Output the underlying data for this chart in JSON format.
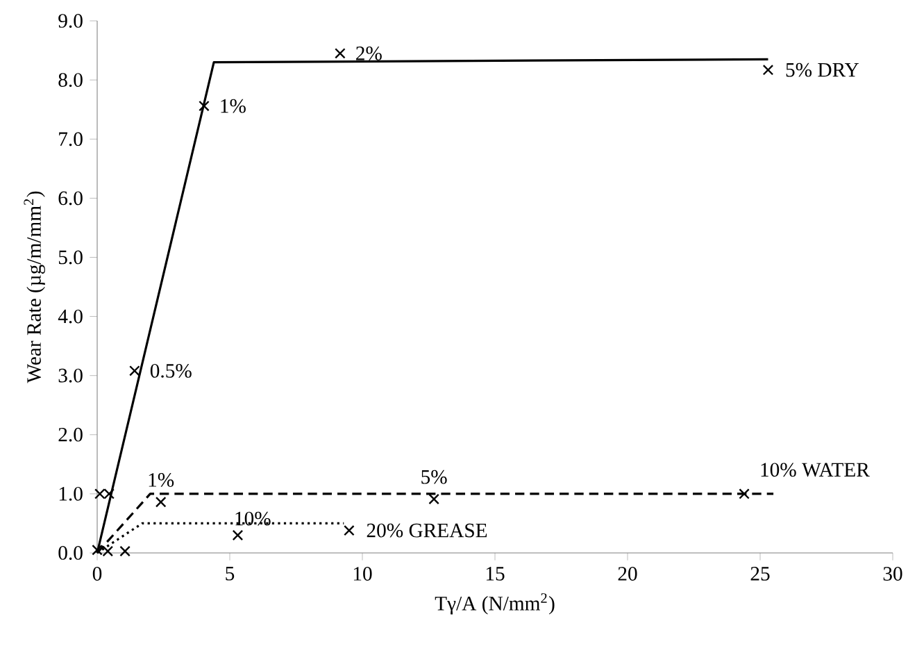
{
  "chart_data": {
    "type": "scatter",
    "xlabel": "Tγ/A (N/mm$^{2}$)",
    "ylabel": "Wear Rate (µg/m/mm$^{2}$)",
    "xlim": [
      0,
      30
    ],
    "xticks": [
      0,
      5,
      10,
      15,
      20,
      25,
      30
    ],
    "ylim": [
      0,
      9
    ],
    "yticks": [
      {
        "value": 0,
        "label": "0.0"
      },
      {
        "value": 1,
        "label": "1.0"
      },
      {
        "value": 2,
        "label": "2.0"
      },
      {
        "value": 3,
        "label": "3.0"
      },
      {
        "value": 4,
        "label": "4.0"
      },
      {
        "value": 5,
        "label": "5.0"
      },
      {
        "value": 6,
        "label": "6.0"
      },
      {
        "value": 7,
        "label": "7.0"
      },
      {
        "value": 8,
        "label": "8.0"
      },
      {
        "value": 9,
        "label": "9.0"
      }
    ],
    "grid": false,
    "legend": false,
    "series": [
      {
        "type": "line",
        "color": "#000000",
        "line_style": "solid",
        "marker": "none",
        "x": [
          0,
          4.4,
          25.3
        ],
        "values": [
          0,
          8.3,
          8.35
        ]
      },
      {
        "color": "#000000",
        "marker": "cross",
        "x": [
          0,
          0.1,
          0.45,
          1.41,
          4.03,
          9.16,
          25.3
        ],
        "values": [
          0.05,
          1.0,
          1.0,
          3.08,
          7.56,
          8.45,
          8.17
        ]
      },
      {
        "type": "line",
        "color": "#000000",
        "line_style": "dashed",
        "marker": "none",
        "x": [
          0,
          2.0,
          25.5
        ],
        "values": [
          0,
          1.0,
          1.0
        ]
      },
      {
        "color": "#000000",
        "marker": "cross",
        "x": [
          0.4,
          1.05,
          2.4,
          12.7,
          24.4
        ],
        "values": [
          0.03,
          0.03,
          0.86,
          0.91,
          1.0
        ]
      },
      {
        "type": "line",
        "color": "#000000",
        "line_style": "dotted",
        "marker": "none",
        "x": [
          0,
          1.7,
          9.3
        ],
        "values": [
          0,
          0.5,
          0.5
        ]
      },
      {
        "color": "#000000",
        "marker": "cross",
        "x": [
          5.3,
          9.5
        ],
        "values": [
          0.3,
          0.38
        ]
      }
    ],
    "annotations": [
      {
        "text": "1%",
        "x": 4.03,
        "y": 7.56
      },
      {
        "text": "2%",
        "x": 9.16,
        "y": 8.45
      },
      {
        "text": "0.5%",
        "x": 1.41,
        "y": 3.08
      },
      {
        "text": "5% DRY",
        "x": 25.3,
        "y": 8.17
      },
      {
        "text": "1%",
        "x": 2.4,
        "y": 0.86
      },
      {
        "text": "5%",
        "x": 12.7,
        "y": 0.91
      },
      {
        "text": "10% WATER",
        "x": 24.4,
        "y": 1.0
      },
      {
        "text": "10%",
        "x": 5.3,
        "y": 0.3
      },
      {
        "text": "20% GREASE",
        "x": 9.5,
        "y": 0.38
      }
    ]
  }
}
